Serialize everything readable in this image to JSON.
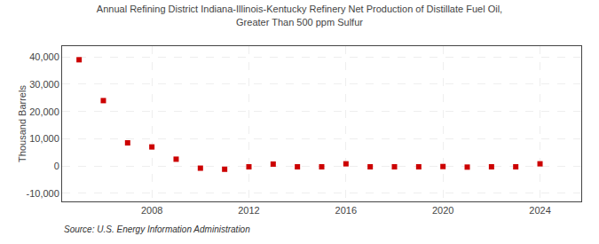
{
  "chart_data": {
    "type": "scatter",
    "title": "Annual Refining District Indiana-Illinois-Kentucky Refinery Net Production of Distillate Fuel Oil,\nGreater Than 500 ppm Sulfur",
    "ylabel": "Thousand Barrels",
    "annotations": [
      "Source: U.S. Energy Information Administration"
    ],
    "x": [
      2005,
      2006,
      2007,
      2008,
      2009,
      2010,
      2011,
      2012,
      2013,
      2014,
      2015,
      2016,
      2017,
      2018,
      2019,
      2020,
      2021,
      2022,
      2023,
      2024
    ],
    "values": [
      39000,
      24000,
      8500,
      7000,
      2500,
      -800,
      -1200,
      -300,
      700,
      -300,
      -300,
      800,
      -300,
      -300,
      -300,
      -200,
      -400,
      -300,
      -300,
      800
    ],
    "color": "#cc0000",
    "marker": "square",
    "xlim": [
      2004.3,
      2025.7
    ],
    "xticks": [
      2008,
      2012,
      2016,
      2020,
      2024
    ],
    "ylim": [
      -13000,
      44000
    ],
    "yticks": [
      {
        "value": -10000,
        "label": "-10,000"
      },
      0,
      {
        "value": 10000,
        "label": "10,000"
      },
      {
        "value": 20000,
        "label": "20,000"
      },
      {
        "value": 30000,
        "label": "30,000"
      },
      {
        "value": 40000,
        "label": "40,000"
      }
    ],
    "grid": true
  }
}
